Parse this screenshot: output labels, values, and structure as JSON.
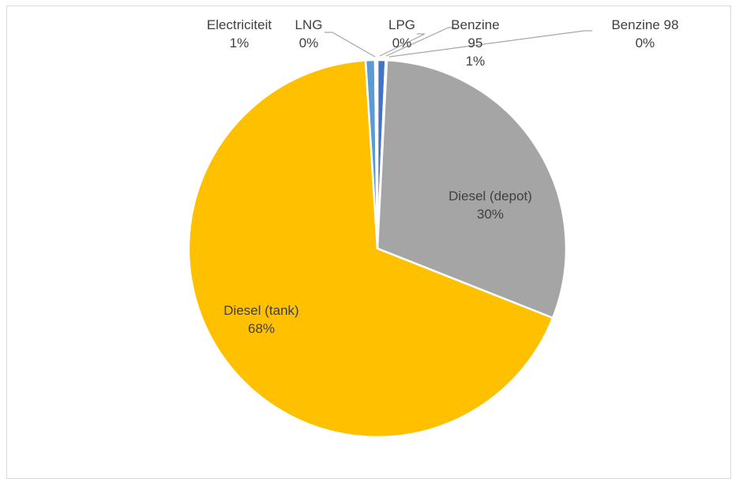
{
  "chart_data": {
    "type": "pie",
    "categories": [
      "Benzine 95",
      "Benzine 98",
      "Diesel (depot)",
      "Diesel (tank)",
      "Electriciteit",
      "LNG",
      "LPG"
    ],
    "values": [
      0.7,
      0.1,
      30.2,
      68.0,
      0.8,
      0.1,
      0.1
    ],
    "labels": [
      {
        "name_lines": [
          "Benzine",
          "95"
        ],
        "pct": "1%"
      },
      {
        "name_lines": [
          "Benzine 98"
        ],
        "pct": "0%"
      },
      {
        "name_lines": [
          "Diesel (depot)"
        ],
        "pct": "30%"
      },
      {
        "name_lines": [
          "Diesel (tank)"
        ],
        "pct": "68%"
      },
      {
        "name_lines": [
          "Electriciteit"
        ],
        "pct": "1%"
      },
      {
        "name_lines": [
          "LNG"
        ],
        "pct": "0%"
      },
      {
        "name_lines": [
          "LPG"
        ],
        "pct": "0%"
      }
    ],
    "colors": [
      "#4472c4",
      "#ed7d31",
      "#a5a5a5",
      "#ffc000",
      "#5b9bd5",
      "#70ad47",
      "#264478"
    ],
    "start_angle_deg": 0,
    "direction": "clockwise",
    "title": "",
    "legend": "none"
  }
}
